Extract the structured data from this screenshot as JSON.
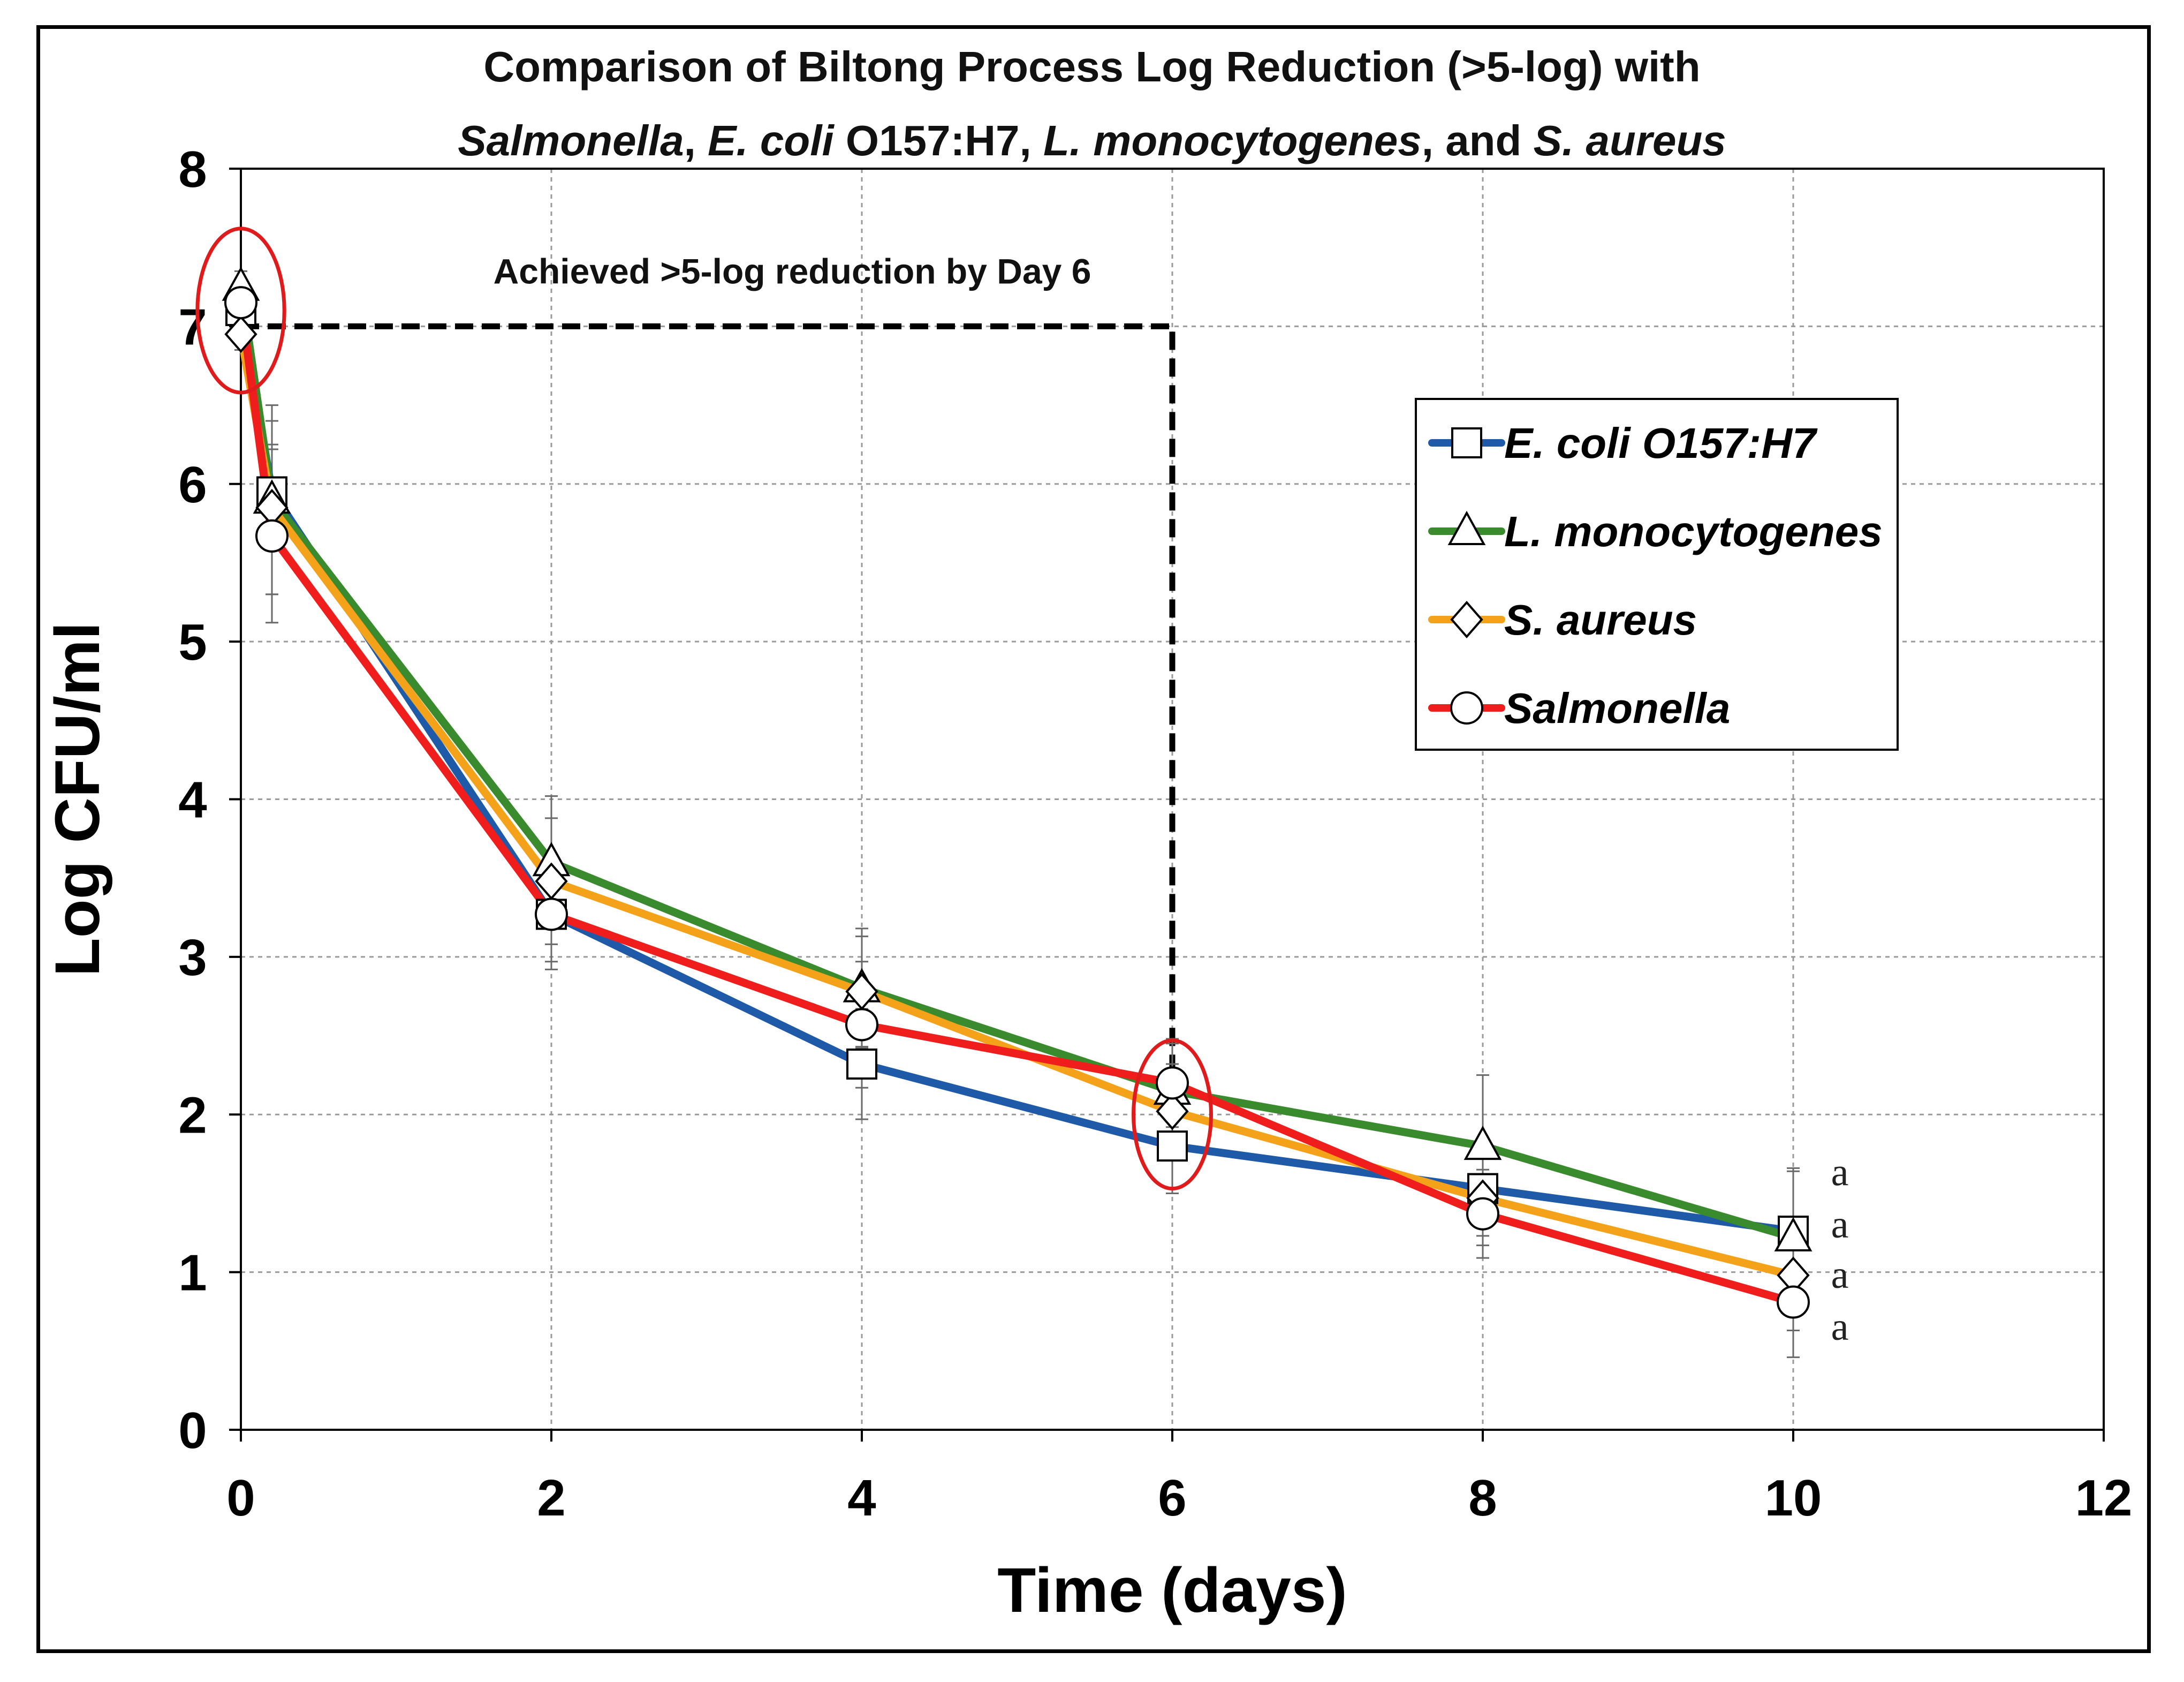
{
  "chart_data": {
    "type": "line",
    "title_line1": "Comparison of Biltong Process Log Reduction (>5-log) with",
    "title_line2_parts": [
      {
        "text": "Salmonella",
        "italic": true
      },
      {
        "text": ", ",
        "italic": false
      },
      {
        "text": "E. coli",
        "italic": true
      },
      {
        "text": " O157:H7, ",
        "italic": false
      },
      {
        "text": "L. monocytogenes",
        "italic": true
      },
      {
        "text": ", and ",
        "italic": false
      },
      {
        "text": "S. aureus",
        "italic": true
      }
    ],
    "xlabel": "Time (days)",
    "ylabel": "Log CFU/ml",
    "xlim": [
      0,
      12
    ],
    "ylim": [
      0,
      8
    ],
    "xticks": [
      0,
      2,
      4,
      6,
      8,
      10,
      12
    ],
    "yticks": [
      0,
      1,
      2,
      3,
      4,
      5,
      6,
      7,
      8
    ],
    "grid": true,
    "legend_position": "right",
    "annotation": {
      "text": "Achieved >5-log reduction by Day 6",
      "line_from": [
        0,
        7
      ],
      "line_corner": [
        6,
        7
      ],
      "line_to": [
        6,
        2.2
      ]
    },
    "highlight_ellipses": [
      {
        "x": 0,
        "y": 7.1,
        "rx_days": 0.28,
        "ry_log": 0.52
      },
      {
        "x": 6,
        "y": 2.0,
        "rx_days": 0.25,
        "ry_log": 0.47
      }
    ],
    "significance_letters": [
      {
        "x": 10.3,
        "y": 1.55,
        "text": "a"
      },
      {
        "x": 10.3,
        "y": 1.22,
        "text": "a"
      },
      {
        "x": 10.3,
        "y": 0.9,
        "text": "a"
      },
      {
        "x": 10.3,
        "y": 0.57,
        "text": "a"
      }
    ],
    "series": [
      {
        "name": "E. coli O157:H7",
        "color": "#1f5aa8",
        "marker": "square",
        "x": [
          0,
          0.2,
          2,
          4,
          6,
          8,
          10
        ],
        "values": [
          7.1,
          5.95,
          3.27,
          2.32,
          1.8,
          1.53,
          1.26
        ],
        "err": [
          0.1,
          0.3,
          0.3,
          0.35,
          0.3,
          0.3,
          0.4
        ]
      },
      {
        "name": "L. monocytogenes",
        "color": "#3a8a2e",
        "marker": "triangle",
        "x": [
          0,
          0.2,
          2,
          4,
          6,
          8,
          10
        ],
        "values": [
          7.25,
          5.9,
          3.6,
          2.8,
          2.15,
          1.8,
          1.22
        ],
        "err": [
          0.1,
          0.6,
          0.42,
          0.38,
          0.3,
          0.45,
          0.42
        ]
      },
      {
        "name": "S. aureus",
        "color": "#f5a21b",
        "marker": "diamond",
        "x": [
          0,
          0.2,
          2,
          4,
          6,
          8,
          10
        ],
        "values": [
          6.95,
          5.85,
          3.48,
          2.78,
          2.02,
          1.47,
          0.98
        ],
        "err": [
          0.1,
          0.55,
          0.4,
          0.35,
          0.3,
          0.3,
          0.35
        ]
      },
      {
        "name": "Salmonella",
        "color": "#f01d1d",
        "marker": "circle",
        "x": [
          0,
          0.2,
          2,
          4,
          6,
          8,
          10
        ],
        "values": [
          7.15,
          5.67,
          3.27,
          2.57,
          2.2,
          1.37,
          0.81
        ],
        "err": [
          0.1,
          0.55,
          0.35,
          0.4,
          0.28,
          0.28,
          0.35
        ]
      }
    ]
  }
}
